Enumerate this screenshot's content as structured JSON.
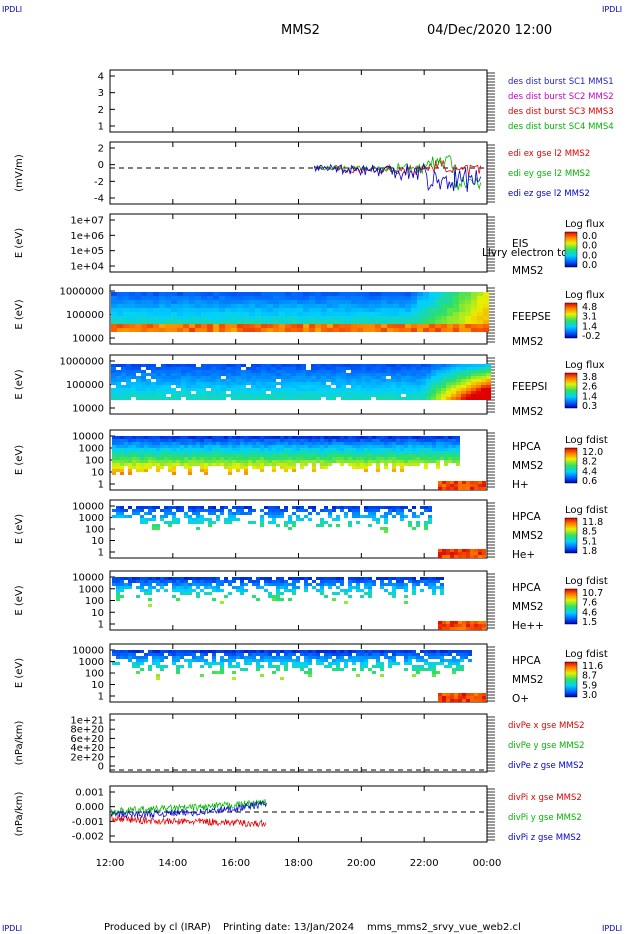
{
  "corner_label": "IPDLI",
  "header": {
    "spacecraft": "MMS2",
    "datetime": "04/Dec/2020 12:00"
  },
  "footer": {
    "produced_by": "Produced by cl (IRAP)",
    "printing_date": "Printing date: 13/Jan/2024",
    "filename": "mms_mms2_srvy_vue_web2.cl"
  },
  "colors": {
    "mms1": "#2323c8",
    "mms2": "#c800c8",
    "mms3": "#e00000",
    "mms4": "#00b400",
    "x": "#e00000",
    "y": "#00b400",
    "z": "#0000d0"
  },
  "panels": [
    {
      "id": "p1",
      "title": "",
      "ylabel": "",
      "yticks": [
        "4",
        "3",
        "2",
        "1"
      ],
      "right": [],
      "legend": [
        "des dist burst SC1 MMS1",
        "des dist burst SC2 MMS2",
        "des dist burst SC3 MMS3",
        "des dist burst SC4 MMS4"
      ]
    },
    {
      "id": "p2",
      "ylabel": "(mV/m)",
      "yticks": [
        "2",
        "0",
        "-2",
        "-4"
      ],
      "right": [],
      "legend": [
        "edi ex gse l2 MMS2",
        "edi ey gse l2 MMS2",
        "edi ez gse l2 MMS2"
      ]
    },
    {
      "id": "p3",
      "ylabel": "E (eV)",
      "yticks": [
        "1e+07",
        "1e+06",
        "1e+05",
        "1e+04"
      ],
      "right": [
        "EIS",
        "MMS2"
      ],
      "overlay": "Llvry electron to",
      "cbar_title": "Log flux",
      "cbar_ticks": [
        "0.0",
        "0.0",
        "0.0",
        "0.0"
      ]
    },
    {
      "id": "p4",
      "ylabel": "E (eV)",
      "yticks": [
        "1000000",
        "100000",
        "10000"
      ],
      "right": [
        "FEEPSE",
        "MMS2"
      ],
      "cbar_title": "Log flux",
      "cbar_ticks": [
        "4.8",
        "3.1",
        "1.4",
        "-0.2"
      ]
    },
    {
      "id": "p5",
      "ylabel": "E (eV)",
      "yticks": [
        "1000000",
        "100000",
        "10000"
      ],
      "right": [
        "FEEPSI",
        "MMS2"
      ],
      "cbar_title": "Log flux",
      "cbar_ticks": [
        "3.8",
        "2.6",
        "1.4",
        "0.3"
      ]
    },
    {
      "id": "p6",
      "ylabel": "E (eV)",
      "yticks": [
        "10000",
        "1000",
        "100",
        "10",
        "1"
      ],
      "right": [
        "HPCA",
        "MMS2",
        "H+"
      ],
      "cbar_title": "Log fdist",
      "cbar_ticks": [
        "12.0",
        "8.2",
        "4.4",
        "0.6"
      ]
    },
    {
      "id": "p7",
      "ylabel": "E (eV)",
      "yticks": [
        "10000",
        "1000",
        "100",
        "10",
        "1"
      ],
      "right": [
        "HPCA",
        "MMS2",
        "He+"
      ],
      "cbar_title": "Log fdist",
      "cbar_ticks": [
        "11.8",
        "8.5",
        "5.1",
        "1.8"
      ]
    },
    {
      "id": "p8",
      "ylabel": "E (eV)",
      "yticks": [
        "10000",
        "1000",
        "100",
        "10",
        "1"
      ],
      "right": [
        "HPCA",
        "MMS2",
        "He++"
      ],
      "cbar_title": "Log fdist",
      "cbar_ticks": [
        "10.7",
        "7.6",
        "4.6",
        "1.5"
      ]
    },
    {
      "id": "p9",
      "ylabel": "E (eV)",
      "yticks": [
        "10000",
        "1000",
        "100",
        "10",
        "1"
      ],
      "right": [
        "HPCA",
        "MMS2",
        "O+"
      ],
      "cbar_title": "Log fdist",
      "cbar_ticks": [
        "11.6",
        "8.7",
        "5.9",
        "3.0"
      ]
    },
    {
      "id": "p10",
      "ylabel": "(nPa/km)",
      "yticks": [
        "1e+21",
        "8e+20",
        "6e+20",
        "4e+20",
        "2e+20",
        "0"
      ],
      "right": [],
      "legend": [
        "divPe x gse MMS2",
        "divPe y gse MMS2",
        "divPe z gse MMS2"
      ]
    },
    {
      "id": "p11",
      "ylabel": "(nPa/km)",
      "yticks": [
        "0.001",
        "0.000",
        "-0.001",
        "-0.002"
      ],
      "right": [],
      "legend": [
        "divPi x gse MMS2",
        "divPi y gse MMS2",
        "divPi z gse MMS2"
      ]
    }
  ],
  "chart_data": {
    "type": "heatmap",
    "x_ticks": [
      "12:00",
      "14:00",
      "16:00",
      "18:00",
      "20:00",
      "22:00",
      "00:00"
    ],
    "x_range": [
      "12:00",
      "00:00"
    ],
    "edi_e_field": {
      "unit": "mV/m",
      "ylim": [
        -5,
        3
      ],
      "series": [
        {
          "name": "edi ex gse l2 MMS2",
          "x": [
            "18:30",
            "19:00",
            "20:00",
            "21:00",
            "22:30",
            "23:20",
            "23:40"
          ],
          "values": [
            0.0,
            -0.3,
            -0.2,
            -0.4,
            0.3,
            -0.5,
            -1.0
          ]
        },
        {
          "name": "edi ey gse l2 MMS2",
          "x": [
            "18:30",
            "19:00",
            "20:00",
            "21:00",
            "22:30",
            "23:20",
            "23:40"
          ],
          "values": [
            0.0,
            0.1,
            -0.2,
            0.1,
            1.0,
            -2.5,
            -4.3
          ]
        },
        {
          "name": "edi ez gse l2 MMS2",
          "x": [
            "18:30",
            "19:00",
            "20:00",
            "21:00",
            "22:30",
            "23:20",
            "23:40"
          ],
          "values": [
            0.0,
            -0.2,
            -0.4,
            -0.5,
            -2.0,
            -1.8,
            -3.0
          ]
        }
      ]
    },
    "divPi": {
      "unit": "nPa/km",
      "ylim": [
        -0.0025,
        0.0015
      ],
      "series": [
        {
          "name": "divPi x gse MMS2",
          "x": [
            "12:00",
            "13:00",
            "14:00",
            "15:00",
            "16:00",
            "17:00"
          ],
          "values": [
            -0.0005,
            -0.0007,
            -0.0008,
            -0.0008,
            -0.0009,
            -0.001
          ]
        },
        {
          "name": "divPi y gse MMS2",
          "x": [
            "12:00",
            "13:00",
            "14:00",
            "15:00",
            "16:00",
            "17:00"
          ],
          "values": [
            0.0,
            0.0002,
            0.0003,
            0.0004,
            0.0006,
            0.0008
          ]
        },
        {
          "name": "divPi z gse MMS2",
          "x": [
            "12:00",
            "13:00",
            "14:00",
            "15:00",
            "16:00",
            "17:00"
          ],
          "values": [
            -0.0002,
            -0.0002,
            -0.0001,
            0.0,
            0.0003,
            0.0007
          ]
        }
      ]
    }
  }
}
